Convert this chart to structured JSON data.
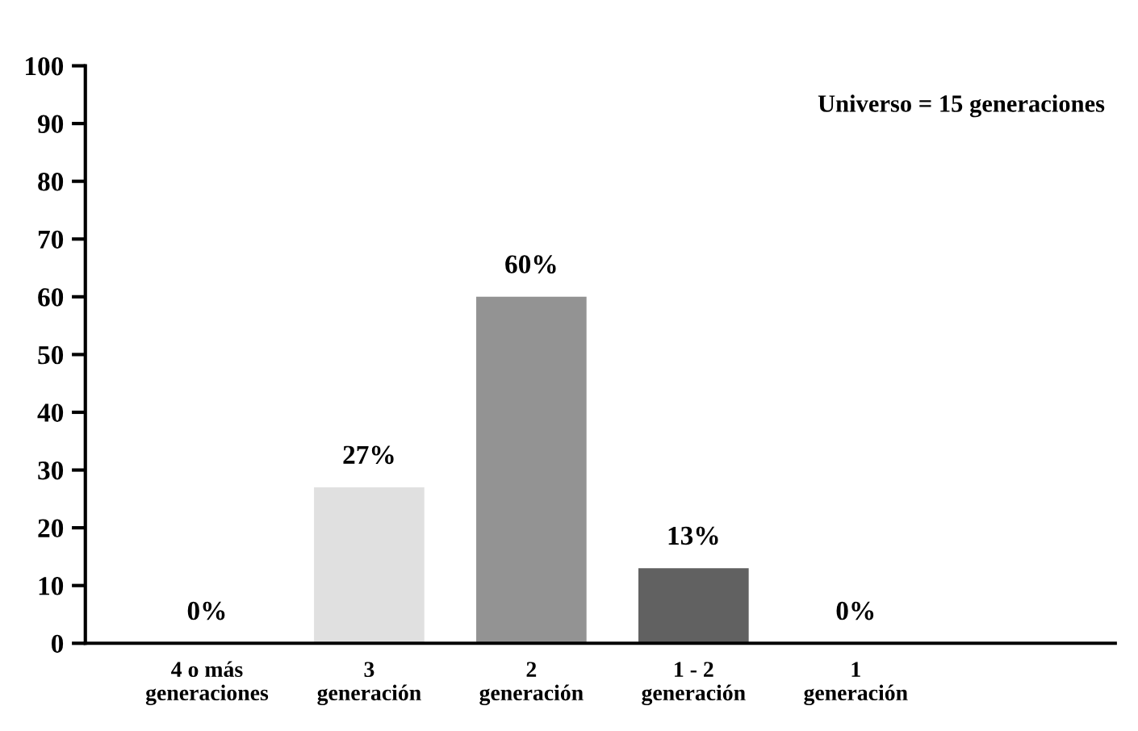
{
  "chart_data": {
    "type": "bar",
    "categories": [
      "4 o más\ngeneraciones",
      "3\ngeneración",
      "2\ngeneración",
      "1 - 2\ngeneración",
      "1\ngeneración"
    ],
    "values": [
      0,
      27,
      60,
      13,
      0
    ],
    "colors": [
      "#e0e0e0",
      "#e0e0e0",
      "#939393",
      "#616161",
      "#616161"
    ],
    "value_labels": [
      "0%",
      "27%",
      "60%",
      "13%",
      "0%"
    ],
    "ylim": [
      0,
      100
    ],
    "yticks": [
      0,
      10,
      20,
      30,
      40,
      50,
      60,
      70,
      80,
      90,
      100
    ],
    "grid": false,
    "legend": false,
    "annotations": [
      "Universo = 15 generaciones"
    ]
  }
}
